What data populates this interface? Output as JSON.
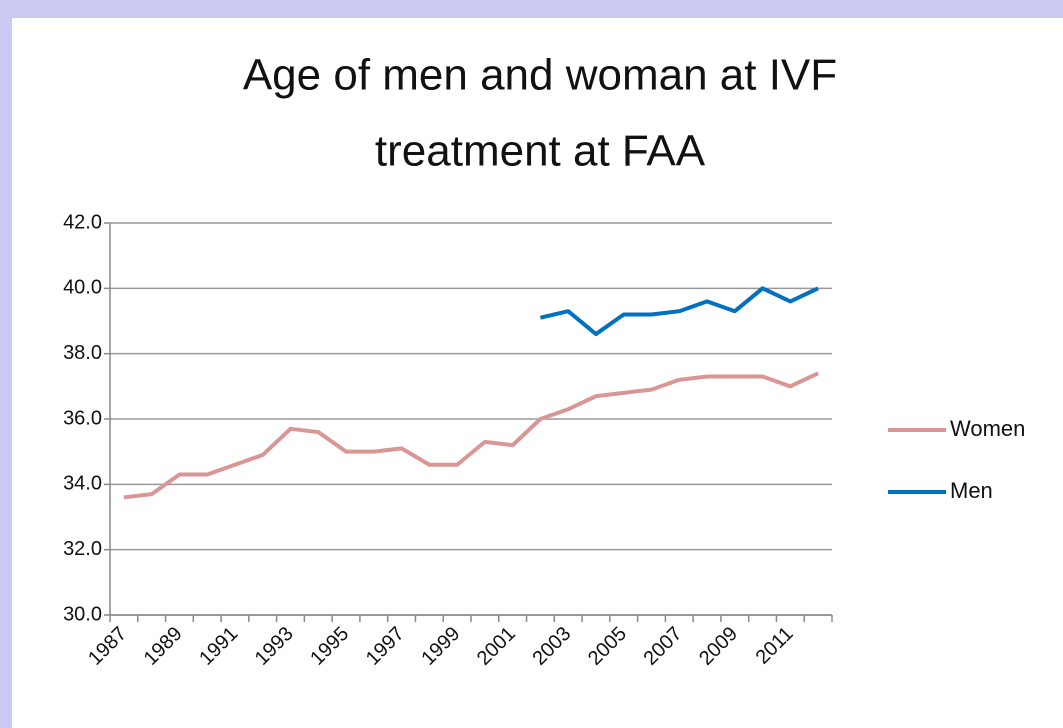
{
  "chart_data": {
    "type": "line",
    "title": [
      "Age of men and woman at IVF",
      "treatment at FAA"
    ],
    "categories": [
      "1987",
      null,
      "1989",
      null,
      "1991",
      null,
      "1993",
      null,
      "1995",
      null,
      "1997",
      null,
      "1999",
      null,
      "2001",
      null,
      "2003",
      null,
      "2005",
      null,
      "2007",
      null,
      "2009",
      null,
      "2011",
      null
    ],
    "series": [
      {
        "name": "Women",
        "color": "#d99694",
        "values": [
          33.6,
          33.7,
          34.3,
          34.3,
          34.6,
          34.9,
          35.7,
          35.6,
          35.0,
          35.0,
          35.1,
          34.6,
          34.6,
          35.3,
          35.2,
          36.0,
          36.3,
          36.7,
          36.8,
          36.9,
          37.2,
          37.3,
          37.3,
          37.3,
          37.0,
          37.4
        ]
      },
      {
        "name": "Men",
        "color": "#0070c0",
        "values": [
          null,
          null,
          null,
          null,
          null,
          null,
          null,
          null,
          null,
          null,
          null,
          null,
          null,
          null,
          null,
          39.1,
          39.3,
          38.6,
          39.2,
          39.2,
          39.3,
          39.6,
          39.3,
          40.0,
          39.6,
          40.0
        ]
      }
    ],
    "ylim": [
      30,
      42
    ],
    "yticks": [
      {
        "value": 30,
        "label": "30.0"
      },
      {
        "value": 32,
        "label": "32.0"
      },
      {
        "value": 34,
        "label": "34.0"
      },
      {
        "value": 36,
        "label": "36.0"
      },
      {
        "value": 38,
        "label": "38.0"
      },
      {
        "value": 40,
        "label": "40.0"
      },
      {
        "value": 42,
        "label": "42.0"
      }
    ],
    "grid": true,
    "legend": "right"
  }
}
